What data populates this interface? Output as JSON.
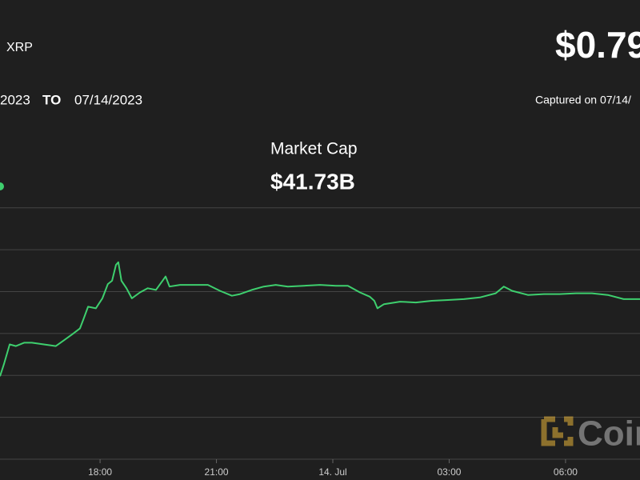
{
  "chart_data": {
    "type": "line",
    "asset": "XRP",
    "price": "$0.79",
    "date_from": "2023",
    "date_sep": "TO",
    "date_to": "07/14/2023",
    "captured": "Captured on 07/14/",
    "metric": "Market Cap",
    "metric_value": "$41.73B",
    "logo": "Coin",
    "color": "#3ecf6e",
    "grid": true,
    "xlim": [
      15.42,
      31.92
    ],
    "ylim": [
      0.6,
      1.0
    ],
    "yticks": [
      0.6,
      0.65,
      0.7,
      0.75,
      0.8,
      0.85,
      0.9
    ],
    "xticks": [
      {
        "value": 18,
        "label": "18:00"
      },
      {
        "value": 21,
        "label": "21:00"
      },
      {
        "value": 24,
        "label": "14. Jul"
      },
      {
        "value": 27,
        "label": "03:00"
      },
      {
        "value": 30,
        "label": "06:00"
      }
    ],
    "x": [
      15.42,
      15.52,
      15.67,
      15.83,
      16.04,
      16.24,
      16.55,
      16.86,
      17.07,
      17.28,
      17.48,
      17.58,
      17.69,
      17.89,
      18.06,
      18.2,
      18.31,
      18.41,
      18.47,
      18.55,
      18.68,
      18.82,
      19.03,
      19.23,
      19.44,
      19.61,
      19.69,
      19.79,
      20.06,
      20.37,
      20.78,
      21.09,
      21.4,
      21.61,
      21.91,
      22.22,
      22.53,
      22.84,
      23.25,
      23.67,
      24.08,
      24.39,
      24.7,
      24.95,
      25.07,
      25.15,
      25.32,
      25.73,
      26.14,
      26.55,
      26.97,
      27.38,
      27.79,
      28.2,
      28.41,
      28.62,
      29.03,
      29.44,
      29.85,
      30.27,
      30.68,
      31.09,
      31.5,
      31.92
    ],
    "values": [
      0.699,
      0.713,
      0.737,
      0.735,
      0.739,
      0.739,
      0.737,
      0.735,
      0.742,
      0.749,
      0.756,
      0.768,
      0.782,
      0.78,
      0.792,
      0.809,
      0.813,
      0.832,
      0.835,
      0.813,
      0.804,
      0.792,
      0.799,
      0.804,
      0.802,
      0.813,
      0.818,
      0.806,
      0.808,
      0.808,
      0.808,
      0.801,
      0.795,
      0.797,
      0.802,
      0.806,
      0.808,
      0.806,
      0.807,
      0.808,
      0.807,
      0.807,
      0.799,
      0.794,
      0.789,
      0.78,
      0.785,
      0.788,
      0.787,
      0.789,
      0.79,
      0.791,
      0.793,
      0.798,
      0.806,
      0.801,
      0.796,
      0.797,
      0.797,
      0.798,
      0.798,
      0.796,
      0.791,
      0.791
    ]
  }
}
